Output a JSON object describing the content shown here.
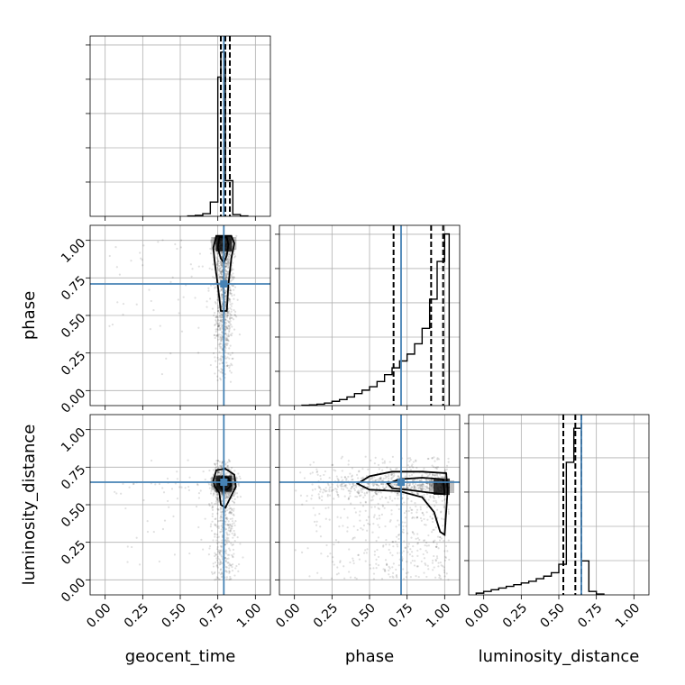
{
  "chart_data": {
    "type": "corner",
    "parameters": [
      "geocent_time",
      "phase",
      "luminosity_distance"
    ],
    "axis_range": [
      -0.1,
      1.1
    ],
    "ticks": [
      0.0,
      0.25,
      0.5,
      0.75,
      1.0
    ],
    "tick_labels": [
      "0.00",
      "0.25",
      "0.50",
      "0.75",
      "1.00"
    ],
    "grid": true,
    "truths": [
      0.79,
      0.71,
      0.65
    ],
    "truth_color": "#4682b4",
    "histograms": [
      {
        "parameter": "geocent_time",
        "bin_edges": [
          0.55,
          0.6,
          0.65,
          0.7,
          0.75,
          0.77,
          0.8,
          0.85,
          0.9,
          0.95
        ],
        "counts": [
          0.2,
          0.5,
          1.5,
          8.0,
          78.0,
          92.0,
          20.0,
          1.0,
          0.2
        ],
        "ymax": 100,
        "quantiles": [
          0.77,
          0.8,
          0.83
        ]
      },
      {
        "parameter": "phase",
        "bin_edges": [
          0.05,
          0.1,
          0.15,
          0.2,
          0.25,
          0.3,
          0.35,
          0.4,
          0.45,
          0.5,
          0.55,
          0.6,
          0.65,
          0.7,
          0.75,
          0.8,
          0.85,
          0.9,
          0.95,
          1.0,
          1.03
        ],
        "counts": [
          0.2,
          0.4,
          0.8,
          1.5,
          2.5,
          3.5,
          5.0,
          7.0,
          9.0,
          11.0,
          14.0,
          18.0,
          22.0,
          26.0,
          30.0,
          36.0,
          45.0,
          62.0,
          84.0,
          100.0
        ],
        "ymax": 104,
        "quantiles": [
          0.66,
          0.91,
          0.99
        ]
      },
      {
        "parameter": "luminosity_distance",
        "bin_edges": [
          -0.05,
          0.0,
          0.05,
          0.1,
          0.15,
          0.2,
          0.25,
          0.3,
          0.35,
          0.4,
          0.45,
          0.5,
          0.55,
          0.6,
          0.65,
          0.7,
          0.75,
          0.8
        ],
        "counts": [
          1.0,
          2.0,
          3.0,
          4.0,
          5.0,
          6.0,
          7.0,
          8.0,
          9.5,
          11.0,
          13.0,
          18.0,
          78.0,
          98.0,
          20.0,
          2.0,
          0.5
        ],
        "ymax": 105,
        "quantiles": [
          0.53,
          0.61,
          0.65
        ]
      }
    ],
    "pairs": [
      {
        "x": "geocent_time",
        "y": "phase",
        "samples": {
          "x_center": 0.79,
          "x_spread": 0.03,
          "y_range": [
            0.0,
            1.03
          ],
          "y_weight": "increasing",
          "outlier_x_range": [
            0.0,
            0.8
          ]
        },
        "peak": [
          0.79,
          0.98
        ],
        "contours": [
          [
            [
              0.74,
              1.03
            ],
            [
              0.72,
              0.95
            ],
            [
              0.73,
              0.85
            ],
            [
              0.75,
              0.7
            ],
            [
              0.77,
              0.53
            ],
            [
              0.81,
              0.53
            ],
            [
              0.82,
              0.7
            ],
            [
              0.84,
              0.88
            ],
            [
              0.86,
              0.98
            ],
            [
              0.84,
              1.03
            ]
          ],
          [
            [
              0.76,
              1.02
            ],
            [
              0.75,
              0.95
            ],
            [
              0.77,
              0.88
            ],
            [
              0.79,
              0.85
            ],
            [
              0.81,
              0.9
            ],
            [
              0.82,
              0.97
            ],
            [
              0.81,
              1.02
            ]
          ]
        ]
      },
      {
        "x": "geocent_time",
        "y": "luminosity_distance",
        "samples": {
          "x_center": 0.79,
          "x_spread": 0.04,
          "y_range": [
            0.0,
            0.8
          ],
          "y_peak": 0.63,
          "outlier_x_range": [
            0.05,
            0.8
          ]
        },
        "peak": [
          0.79,
          0.64
        ],
        "contours": [
          [
            [
              0.72,
              0.66
            ],
            [
              0.74,
              0.73
            ],
            [
              0.8,
              0.74
            ],
            [
              0.86,
              0.7
            ],
            [
              0.87,
              0.62
            ],
            [
              0.84,
              0.56
            ],
            [
              0.8,
              0.48
            ],
            [
              0.77,
              0.5
            ],
            [
              0.76,
              0.58
            ],
            [
              0.73,
              0.62
            ]
          ],
          [
            [
              0.76,
              0.64
            ],
            [
              0.78,
              0.69
            ],
            [
              0.82,
              0.68
            ],
            [
              0.84,
              0.63
            ],
            [
              0.81,
              0.6
            ],
            [
              0.78,
              0.6
            ]
          ]
        ]
      },
      {
        "x": "phase",
        "y": "luminosity_distance",
        "samples": {
          "x_range": [
            0.0,
            1.03
          ],
          "x_weight": "increasing",
          "y_range": [
            0.0,
            0.82
          ],
          "y_peak": 0.63
        },
        "peak": [
          0.98,
          0.62
        ],
        "contours": [
          [
            [
              0.42,
              0.64
            ],
            [
              0.5,
              0.69
            ],
            [
              0.65,
              0.72
            ],
            [
              0.85,
              0.72
            ],
            [
              1.01,
              0.71
            ],
            [
              1.02,
              0.6
            ],
            [
              1.0,
              0.3
            ],
            [
              0.97,
              0.32
            ],
            [
              0.93,
              0.45
            ],
            [
              0.85,
              0.55
            ],
            [
              0.7,
              0.59
            ],
            [
              0.5,
              0.6
            ]
          ],
          [
            [
              0.62,
              0.64
            ],
            [
              0.7,
              0.67
            ],
            [
              0.85,
              0.68
            ],
            [
              0.99,
              0.67
            ],
            [
              1.0,
              0.57
            ],
            [
              0.9,
              0.58
            ],
            [
              0.75,
              0.6
            ],
            [
              0.65,
              0.61
            ]
          ]
        ]
      }
    ]
  }
}
